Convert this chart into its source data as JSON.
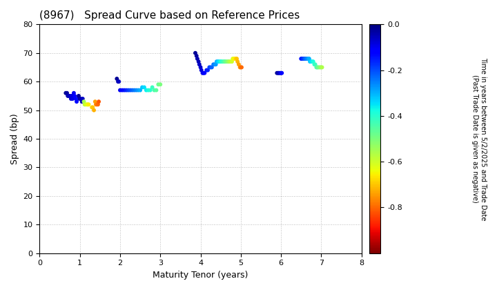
{
  "title": "(8967)   Spread Curve based on Reference Prices",
  "xlabel": "Maturity Tenor (years)",
  "ylabel": "Spread (bp)",
  "xlim": [
    0,
    8
  ],
  "ylim": [
    0,
    80
  ],
  "xticks": [
    0,
    1,
    2,
    3,
    4,
    5,
    6,
    7,
    8
  ],
  "yticks": [
    0,
    10,
    20,
    30,
    40,
    50,
    60,
    70,
    80
  ],
  "colorbar_label": "Time in years between 5/2/2025 and Trade Date\n(Past Trade Date is given as negative)",
  "colorbar_ticks": [
    0.0,
    -0.2,
    -0.4,
    -0.6,
    -0.8
  ],
  "cmap": "jet_r",
  "vmin": -1.0,
  "vmax": 0.0,
  "points": {
    "x": [
      0.65,
      0.68,
      0.7,
      0.72,
      0.75,
      0.78,
      0.8,
      0.82,
      0.85,
      0.87,
      0.9,
      0.92,
      0.95,
      0.97,
      1.0,
      1.02,
      1.05,
      1.07,
      1.1,
      1.12,
      1.15,
      1.18,
      1.2,
      1.22,
      1.3,
      1.32,
      1.35,
      1.38,
      1.4,
      1.42,
      1.45,
      1.47,
      1.92,
      1.95,
      1.97,
      2.0,
      2.05,
      2.1,
      2.15,
      2.2,
      2.25,
      2.3,
      2.35,
      2.4,
      2.45,
      2.5,
      2.55,
      2.6,
      2.65,
      2.7,
      2.75,
      2.8,
      2.85,
      2.9,
      2.95,
      3.0,
      3.87,
      3.9,
      3.92,
      3.95,
      3.97,
      4.0,
      4.02,
      4.05,
      4.07,
      4.1,
      4.15,
      4.18,
      4.22,
      4.25,
      4.28,
      4.32,
      4.35,
      4.38,
      4.4,
      4.43,
      4.45,
      4.48,
      4.5,
      4.52,
      4.55,
      4.58,
      4.6,
      4.62,
      4.65,
      4.68,
      4.7,
      4.72,
      4.75,
      4.78,
      4.8,
      4.83,
      4.85,
      4.88,
      4.9,
      4.92,
      4.95,
      4.98,
      5.0,
      5.02,
      5.9,
      5.93,
      5.95,
      5.98,
      6.0,
      6.02,
      6.5,
      6.52,
      6.55,
      6.58,
      6.6,
      6.62,
      6.65,
      6.68,
      6.7,
      6.72,
      6.75,
      6.78,
      6.8,
      6.83,
      6.85,
      6.88,
      6.9,
      6.92,
      6.95,
      6.98,
      7.0,
      7.02
    ],
    "y": [
      56,
      56,
      55,
      55,
      55,
      54,
      55,
      54,
      56,
      55,
      54,
      53,
      54,
      55,
      54,
      54,
      53,
      54,
      53,
      52,
      52,
      52,
      52,
      52,
      51,
      51,
      50,
      53,
      52,
      52,
      52,
      53,
      61,
      60,
      60,
      57,
      57,
      57,
      57,
      57,
      57,
      57,
      57,
      57,
      57,
      57,
      58,
      58,
      57,
      57,
      57,
      58,
      57,
      57,
      59,
      59,
      70,
      69,
      68,
      67,
      66,
      65,
      64,
      63,
      63,
      63,
      64,
      64,
      65,
      65,
      65,
      66,
      66,
      66,
      67,
      67,
      67,
      67,
      67,
      67,
      67,
      67,
      67,
      67,
      67,
      67,
      67,
      67,
      67,
      67,
      68,
      68,
      68,
      68,
      68,
      67,
      66,
      65,
      65,
      65,
      63,
      63,
      63,
      63,
      63,
      63,
      68,
      68,
      68,
      68,
      68,
      68,
      68,
      68,
      68,
      67,
      67,
      67,
      67,
      66,
      66,
      65,
      65,
      65,
      65,
      65,
      65,
      65
    ],
    "c": [
      -0.02,
      -0.03,
      -0.04,
      -0.05,
      -0.06,
      -0.07,
      -0.08,
      -0.09,
      -0.1,
      -0.11,
      -0.12,
      -0.13,
      -0.14,
      -0.02,
      -0.03,
      -0.04,
      -0.05,
      -0.06,
      -0.55,
      -0.58,
      -0.6,
      -0.62,
      -0.64,
      -0.66,
      -0.68,
      -0.7,
      -0.72,
      -0.74,
      -0.76,
      -0.78,
      -0.8,
      -0.82,
      -0.02,
      -0.04,
      -0.06,
      -0.1,
      -0.12,
      -0.14,
      -0.16,
      -0.18,
      -0.2,
      -0.22,
      -0.24,
      -0.26,
      -0.28,
      -0.3,
      -0.32,
      -0.34,
      -0.36,
      -0.38,
      -0.4,
      -0.42,
      -0.44,
      -0.46,
      -0.48,
      -0.5,
      -0.02,
      -0.03,
      -0.04,
      -0.05,
      -0.06,
      -0.07,
      -0.08,
      -0.09,
      -0.1,
      -0.12,
      -0.14,
      -0.16,
      -0.18,
      -0.2,
      -0.22,
      -0.24,
      -0.26,
      -0.28,
      -0.3,
      -0.32,
      -0.34,
      -0.36,
      -0.38,
      -0.4,
      -0.42,
      -0.44,
      -0.46,
      -0.48,
      -0.5,
      -0.52,
      -0.54,
      -0.56,
      -0.58,
      -0.6,
      -0.62,
      -0.64,
      -0.66,
      -0.68,
      -0.7,
      -0.72,
      -0.74,
      -0.76,
      -0.78,
      -0.8,
      -0.02,
      -0.04,
      -0.06,
      -0.08,
      -0.1,
      -0.12,
      -0.14,
      -0.16,
      -0.18,
      -0.2,
      -0.22,
      -0.24,
      -0.26,
      -0.28,
      -0.3,
      -0.32,
      -0.34,
      -0.36,
      -0.38,
      -0.4,
      -0.42,
      -0.44,
      -0.46,
      -0.48,
      -0.5,
      -0.52,
      -0.54,
      -0.56
    ]
  },
  "background_color": "#ffffff",
  "grid_color": "#aaaaaa",
  "marker_size": 18
}
